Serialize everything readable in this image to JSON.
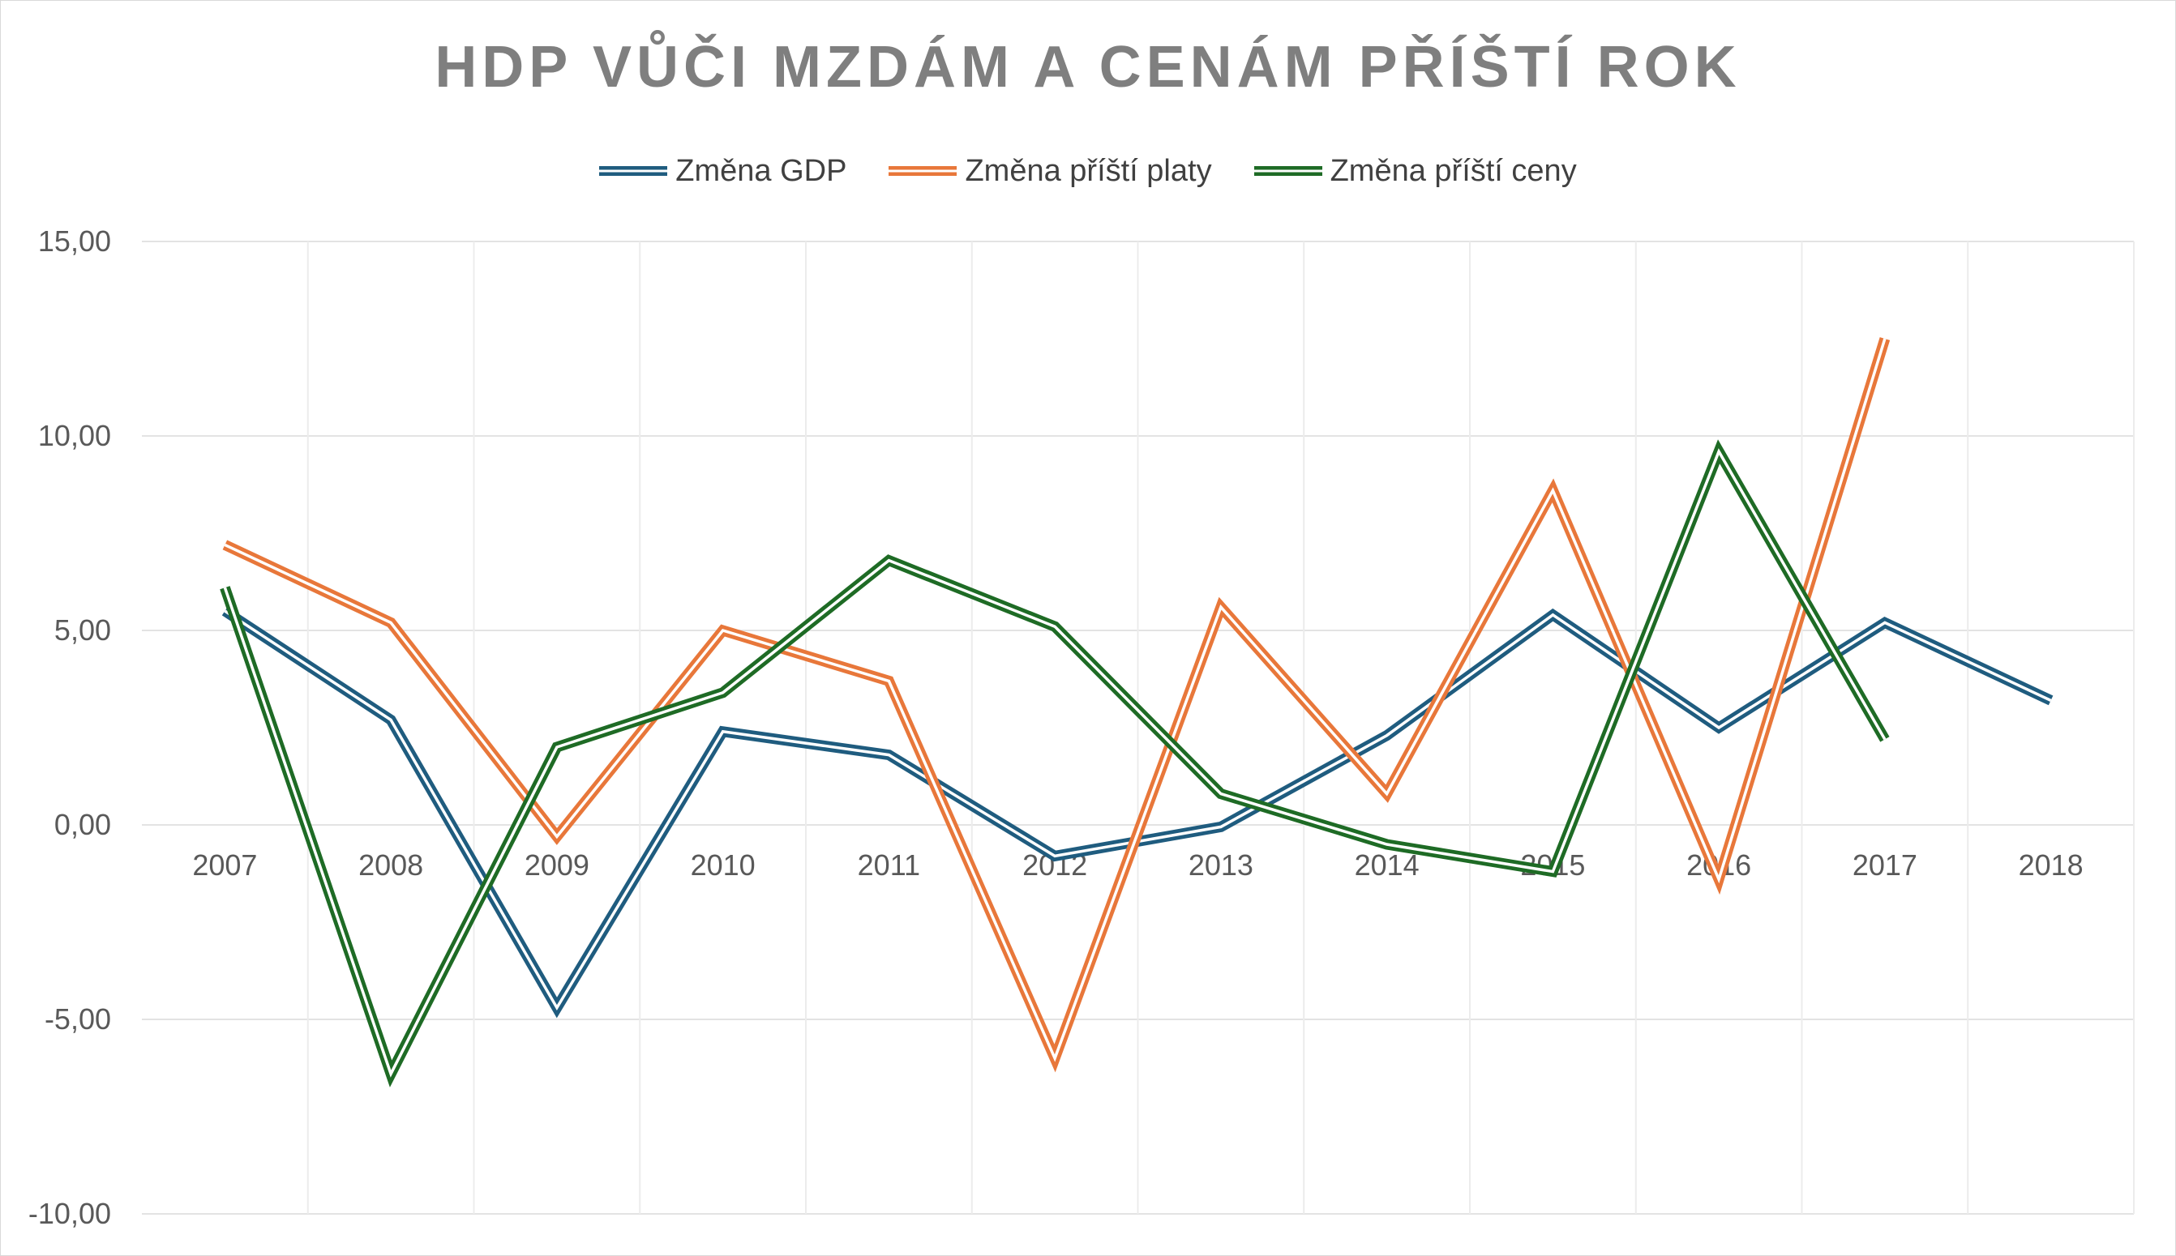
{
  "chart_data": {
    "type": "line",
    "title": "HDP VŮČI MZDÁM A CENÁM PŘÍŠTÍ ROK",
    "xlabel": "",
    "ylabel": "",
    "categories": [
      "2007",
      "2008",
      "2009",
      "2010",
      "2011",
      "2012",
      "2013",
      "2014",
      "2015",
      "2016",
      "2017",
      "2018"
    ],
    "ylim": [
      -10,
      15
    ],
    "yticks": [
      15,
      10,
      5,
      0,
      -5,
      -10
    ],
    "ytick_labels": [
      "15,00",
      "10,00",
      "5,00",
      "0,00",
      "-5,00",
      "-10,00"
    ],
    "grid": true,
    "legend_position": "top",
    "series": [
      {
        "name": "Změna GDP",
        "color": "#1f5c7f",
        "values": [
          5.5,
          2.7,
          -4.7,
          2.4,
          1.8,
          -0.8,
          -0.05,
          2.3,
          5.4,
          2.5,
          5.2,
          3.2
        ]
      },
      {
        "name": "Změna příští platy",
        "color": "#e8773a",
        "values": [
          7.2,
          5.2,
          -0.3,
          5.0,
          3.7,
          -6.0,
          5.6,
          0.8,
          8.6,
          -1.4,
          12.5,
          null
        ]
      },
      {
        "name": "Změna příští ceny",
        "color": "#1e6b25",
        "values": [
          6.1,
          -6.4,
          2.0,
          3.4,
          6.8,
          5.1,
          0.8,
          -0.5,
          -1.2,
          9.6,
          2.2,
          null
        ]
      }
    ]
  }
}
